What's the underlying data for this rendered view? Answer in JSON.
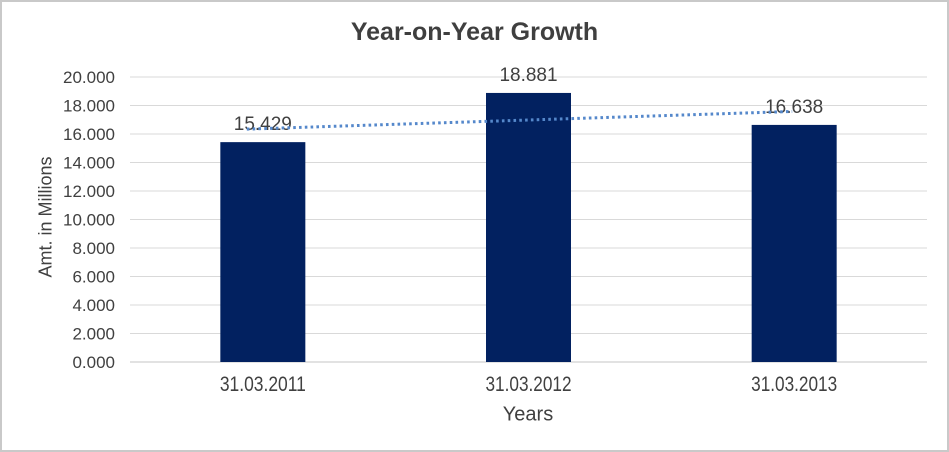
{
  "chart_data": {
    "type": "bar",
    "title": "Year-on-Year Growth",
    "xlabel": "Years",
    "ylabel": "Amt. in Millions",
    "categories": [
      "31.03.2011",
      "31.03.2012",
      "31.03.2013"
    ],
    "values": [
      15.429,
      18.881,
      16.638
    ],
    "data_labels": [
      "15.429",
      "18.881",
      "16.638"
    ],
    "ylim": [
      0,
      20
    ],
    "ytick_step": 2,
    "ytick_labels": [
      "0.000",
      "2.000",
      "4.000",
      "6.000",
      "8.000",
      "10.000",
      "12.000",
      "14.000",
      "16.000",
      "18.000",
      "20.000"
    ],
    "grid": true,
    "legend": "none",
    "trendline": {
      "type": "linear",
      "style": "dotted"
    },
    "colors": {
      "bar": "#022160",
      "trendline": "#5588CB",
      "gridline": "#D9D9D9",
      "axis_line": "#C6C6C6",
      "text": "#404040",
      "title": "#3F3F3F",
      "border": "#C9C9C9",
      "background": "#FFFFFF"
    }
  }
}
